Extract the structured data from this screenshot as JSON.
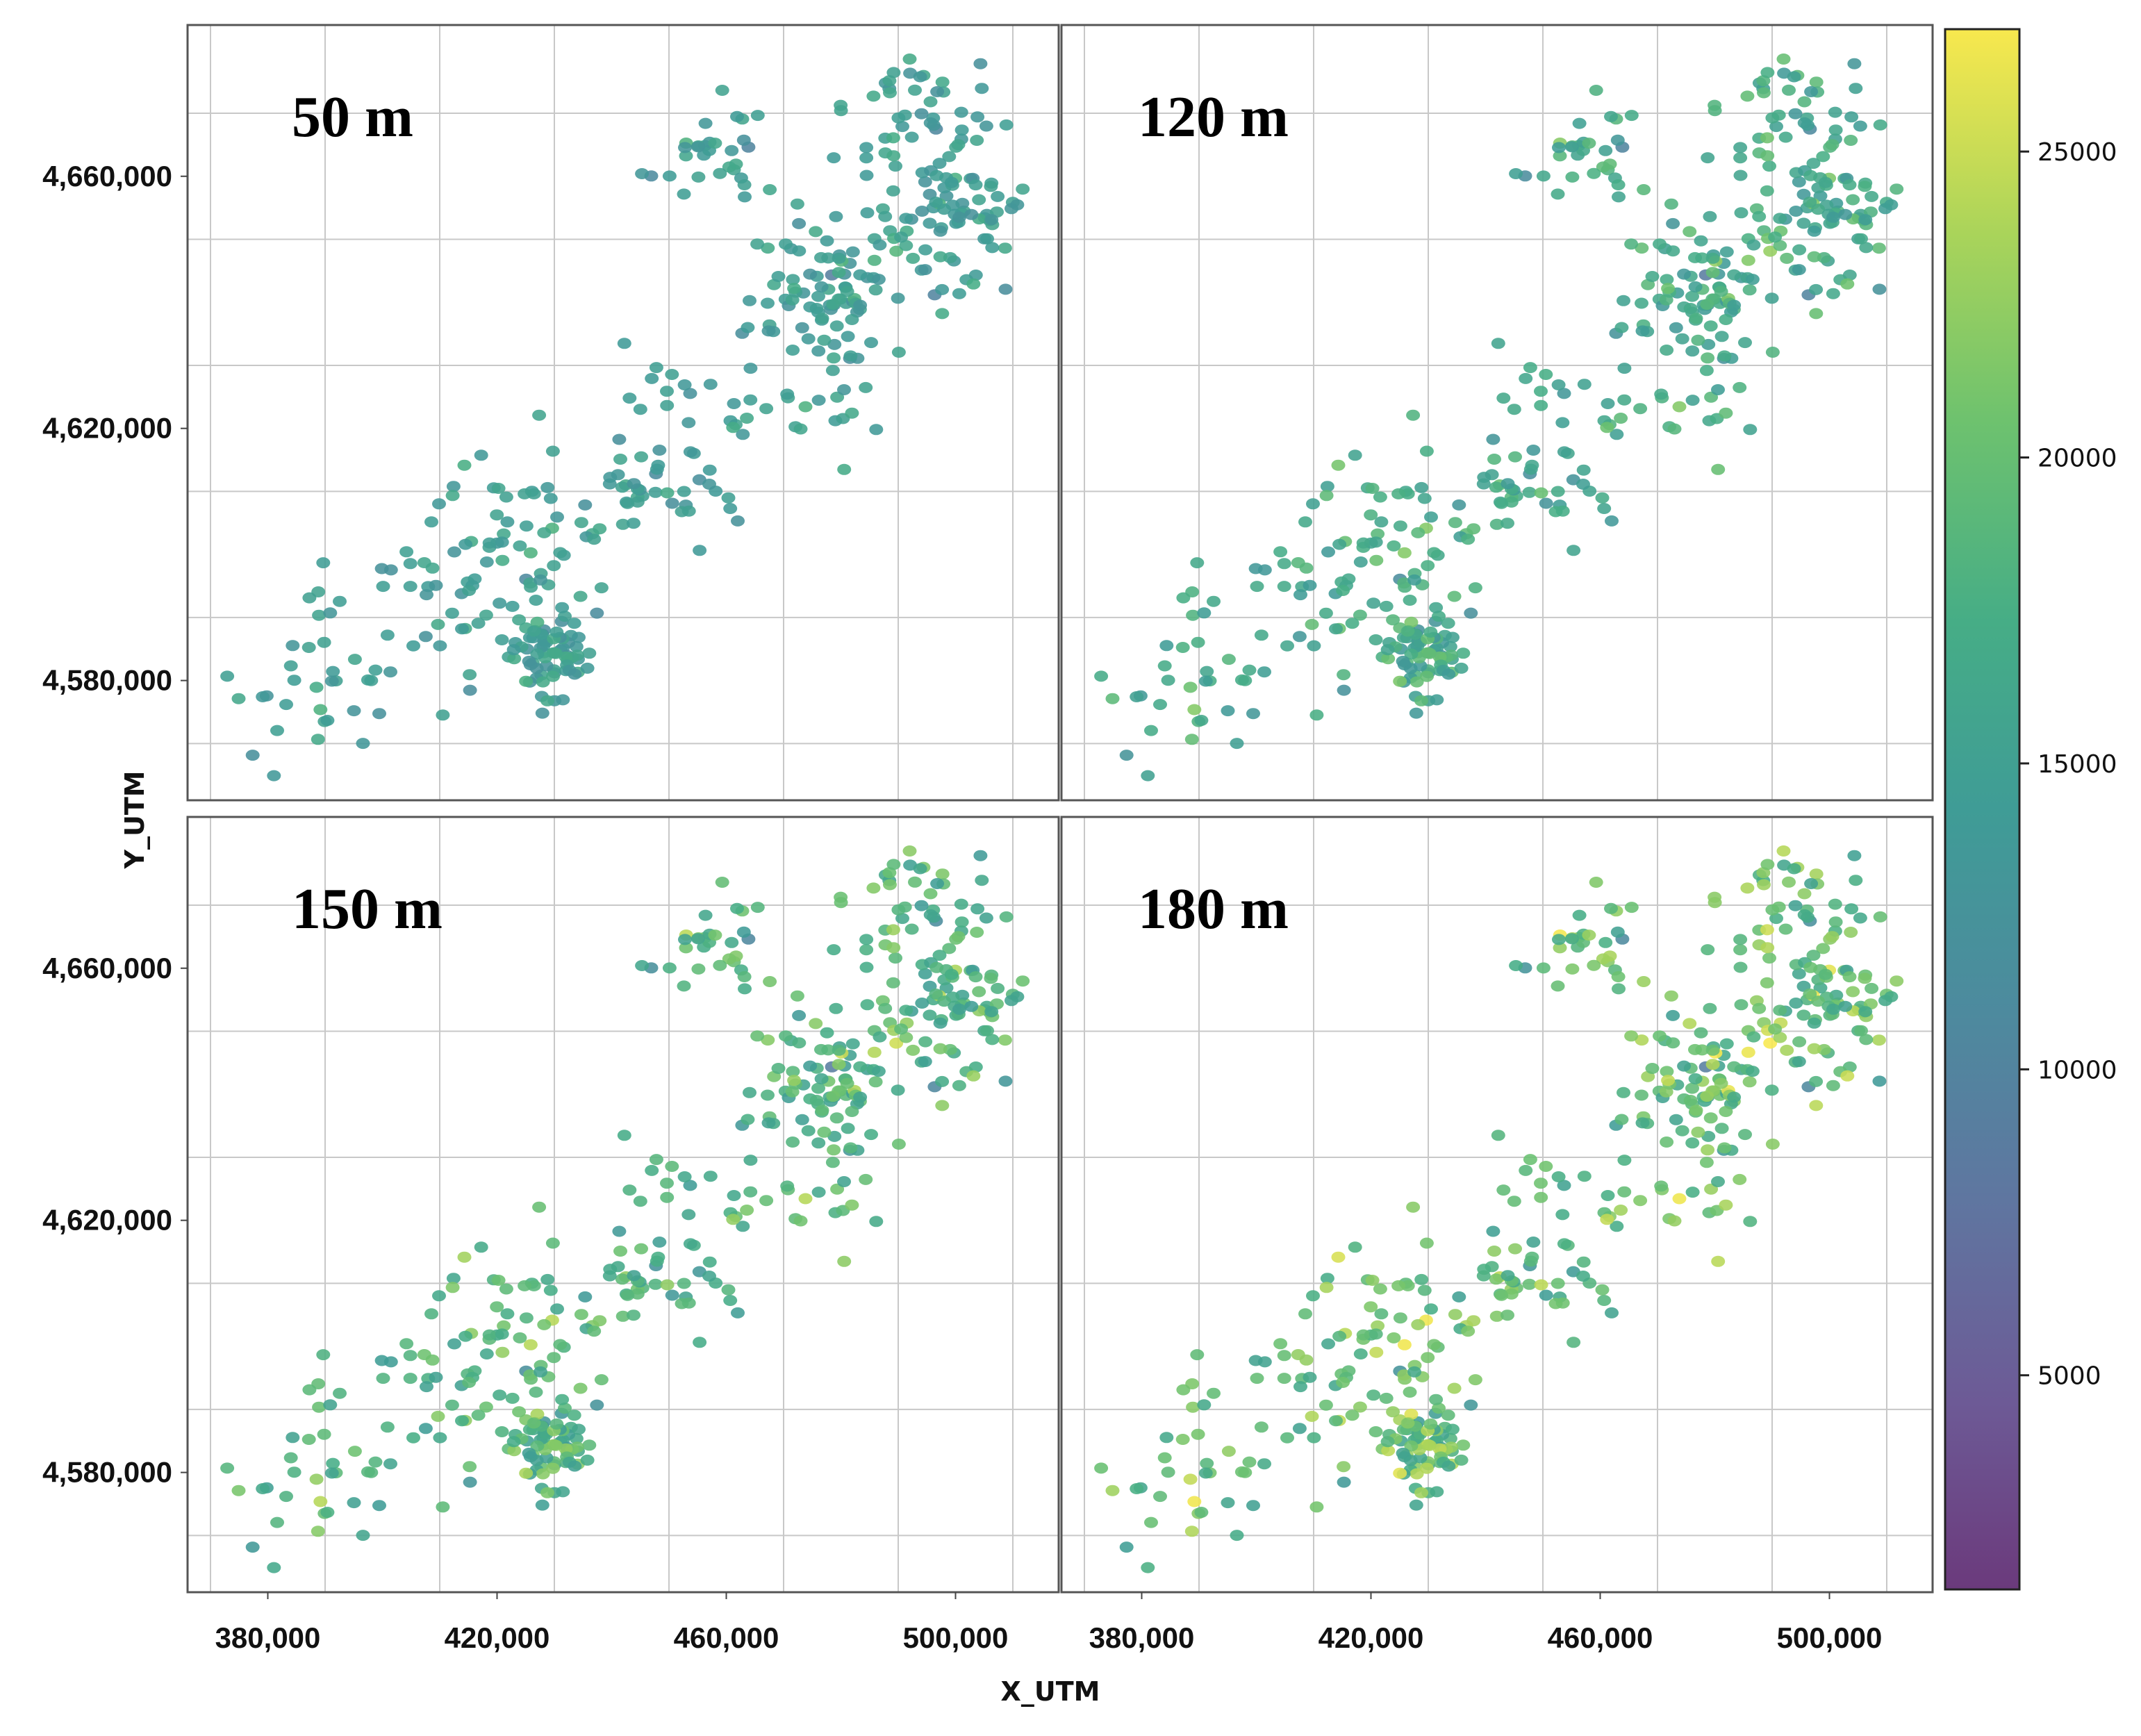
{
  "chart_data": {
    "type": "scatter",
    "layout": "2x2 panels with shared axes and a common colorbar",
    "panels": [
      {
        "title": "50 m",
        "level": 0
      },
      {
        "title": "120 m",
        "level": 1
      },
      {
        "title": "150 m",
        "level": 2
      },
      {
        "title": "180 m",
        "level": 3
      }
    ],
    "xlabel": "X_UTM",
    "ylabel": "Y_UTM",
    "xlim": [
      366000,
      518000
    ],
    "ylim": [
      4561000,
      4684000
    ],
    "x_ticks": [
      380000,
      420000,
      460000,
      500000
    ],
    "x_tick_labels": [
      "380,000",
      "420,000",
      "460,000",
      "500,000"
    ],
    "y_ticks": [
      4580000,
      4620000,
      4660000
    ],
    "y_tick_labels": [
      "4,580,000",
      "4,620,000",
      "4,660,000"
    ],
    "colorbar": {
      "colormap": "viridis",
      "range": [
        1500,
        27000
      ],
      "ticks": [
        5000,
        10000,
        15000,
        20000,
        25000
      ],
      "tick_labels": [
        "5000",
        "10000",
        "15000",
        "20000",
        "25000"
      ]
    },
    "point_clusters_description": "Same station locations in every panel; values increase with height (50 m mostly ~13000-16000, 180 m mostly ~17000-24000).",
    "point_clusters": [
      {
        "x": 429000,
        "y": 4584000,
        "sx": 3500,
        "sy": 3500,
        "n": 70
      },
      {
        "x": 478000,
        "y": 4641000,
        "sx": 7000,
        "sy": 7000,
        "n": 90
      },
      {
        "x": 500000,
        "y": 4654000,
        "sx": 6000,
        "sy": 6000,
        "n": 80
      },
      {
        "x": 492000,
        "y": 4669000,
        "sx": 8000,
        "sy": 6000,
        "n": 45
      },
      {
        "x": 458000,
        "y": 4664000,
        "sx": 5000,
        "sy": 4000,
        "n": 30
      },
      {
        "x": 425000,
        "y": 4600000,
        "sx": 9000,
        "sy": 7000,
        "n": 70
      },
      {
        "x": 445000,
        "y": 4609000,
        "sx": 9000,
        "sy": 4000,
        "n": 35
      },
      {
        "x": 455000,
        "y": 4624000,
        "sx": 8000,
        "sy": 6000,
        "n": 22
      },
      {
        "x": 388000,
        "y": 4580000,
        "sx": 8000,
        "sy": 7000,
        "n": 35
      },
      {
        "x": 408000,
        "y": 4590000,
        "sx": 7000,
        "sy": 8000,
        "n": 18
      },
      {
        "x": 470000,
        "y": 4625000,
        "sx": 9000,
        "sy": 6000,
        "n": 18
      }
    ],
    "point_value_means": [
      14500,
      16500,
      18000,
      19500
    ],
    "point_value_spread": [
      1500,
      2200,
      2600,
      3000
    ]
  }
}
